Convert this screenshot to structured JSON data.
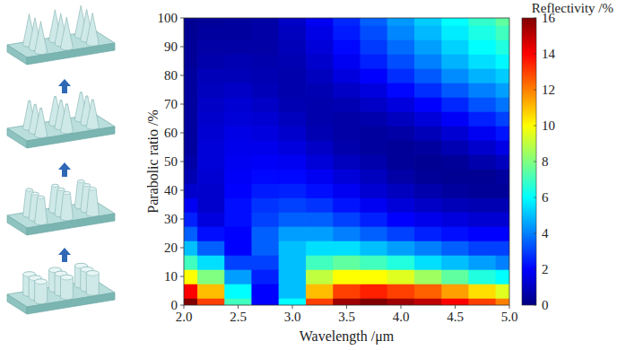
{
  "chart_data": {
    "type": "heatmap",
    "x_label": "Wavelength /μm",
    "y_label": "Parabolic ratio /%",
    "x": [
      2.0,
      2.25,
      2.5,
      2.75,
      3.0,
      3.25,
      3.5,
      3.75,
      4.0,
      4.25,
      4.5,
      4.75,
      5.0
    ],
    "y": [
      0,
      5,
      10,
      15,
      20,
      25,
      30,
      35,
      40,
      45,
      50,
      55,
      60,
      65,
      70,
      75,
      80,
      85,
      90,
      95,
      100
    ],
    "values": [
      [
        16,
        13,
        7,
        2,
        6,
        13,
        15.5,
        16,
        15.5,
        15,
        14,
        13,
        12
      ],
      [
        14,
        11,
        6,
        2,
        5,
        11,
        13,
        13.5,
        13,
        12.5,
        11.5,
        10.5,
        9.5
      ],
      [
        10,
        8,
        4.5,
        2.5,
        5,
        9,
        10,
        10,
        9.5,
        8.5,
        7.5,
        6.5,
        6
      ],
      [
        7,
        5.5,
        3,
        3,
        5,
        7,
        7.5,
        7,
        6.5,
        5.5,
        5,
        4.5,
        4
      ],
      [
        5,
        3.5,
        2,
        3.5,
        5,
        5.5,
        5.5,
        5,
        4.5,
        4,
        3.5,
        3,
        3
      ],
      [
        3.5,
        2.2,
        2,
        3.5,
        4.5,
        4.5,
        4,
        3.5,
        3,
        2.5,
        2.2,
        2,
        2
      ],
      [
        2.5,
        1.5,
        2.2,
        3,
        3.5,
        3.5,
        3,
        2.5,
        2,
        1.7,
        1.5,
        1.3,
        1.3
      ],
      [
        1.8,
        1.2,
        2.2,
        2.8,
        3,
        2.8,
        2.3,
        1.8,
        1.4,
        1.1,
        0.9,
        0.8,
        0.8
      ],
      [
        1.2,
        1.2,
        2,
        2.4,
        2.5,
        2.2,
        1.8,
        1.3,
        1,
        0.7,
        0.5,
        0.4,
        0.4
      ],
      [
        0.8,
        1.3,
        1.9,
        2.1,
        2.1,
        1.8,
        1.4,
        1,
        0.6,
        0.4,
        0.3,
        0.3,
        0.5
      ],
      [
        0.6,
        1.4,
        1.8,
        1.9,
        1.8,
        1.4,
        1,
        0.7,
        0.4,
        0.3,
        0.4,
        0.7,
        1
      ],
      [
        0.5,
        1.4,
        1.7,
        1.7,
        1.5,
        1.1,
        0.7,
        0.5,
        0.4,
        0.5,
        0.8,
        1.2,
        1.6
      ],
      [
        0.5,
        1.3,
        1.6,
        1.5,
        1.2,
        0.8,
        0.6,
        0.5,
        0.6,
        0.9,
        1.3,
        1.8,
        2.3
      ],
      [
        0.5,
        1.2,
        1.4,
        1.3,
        1,
        0.7,
        0.6,
        0.7,
        1,
        1.4,
        1.9,
        2.5,
        3
      ],
      [
        0.5,
        1.1,
        1.3,
        1.1,
        0.8,
        0.7,
        0.8,
        1.1,
        1.5,
        2,
        2.6,
        3.3,
        3.8
      ],
      [
        0.5,
        1,
        1.1,
        0.9,
        0.7,
        0.8,
        1.1,
        1.5,
        2.1,
        2.7,
        3.4,
        4,
        4.5
      ],
      [
        0.5,
        0.9,
        0.9,
        0.8,
        0.7,
        1,
        1.5,
        2,
        2.7,
        3.4,
        4.2,
        4.8,
        5.2
      ],
      [
        0.4,
        0.7,
        0.8,
        0.7,
        0.8,
        1.2,
        1.8,
        2.5,
        3.2,
        4,
        4.8,
        5.5,
        5.9
      ],
      [
        0.4,
        0.6,
        0.6,
        0.6,
        0.9,
        1.4,
        2.1,
        2.9,
        3.7,
        4.5,
        5.3,
        6,
        6.5
      ],
      [
        0.3,
        0.5,
        0.5,
        0.6,
        1,
        1.6,
        2.4,
        3.2,
        4.1,
        4.9,
        5.7,
        6.4,
        7
      ],
      [
        0.3,
        0.4,
        0.5,
        0.6,
        1.1,
        1.8,
        2.6,
        3.5,
        4.4,
        5.2,
        6,
        6.8,
        7.5
      ]
    ],
    "xlim": [
      2,
      5
    ],
    "ylim": [
      0,
      100
    ],
    "xticks": [
      {
        "value": 2,
        "label": "2.0"
      },
      {
        "value": 2.5,
        "label": "2.5"
      },
      {
        "value": 3,
        "label": "3.0"
      },
      {
        "value": 3.5,
        "label": "3.5"
      },
      {
        "value": 4,
        "label": "4.0"
      },
      {
        "value": 4.5,
        "label": "4.5"
      },
      {
        "value": 5,
        "label": "5.0"
      }
    ],
    "yticks": [
      0,
      10,
      20,
      30,
      40,
      50,
      60,
      70,
      80,
      90,
      100
    ],
    "colorbar": {
      "title": "Reflectivity /%",
      "range": [
        0,
        16
      ],
      "ticks": [
        0,
        2,
        4,
        6,
        8,
        10,
        12,
        14,
        16
      ]
    }
  }
}
